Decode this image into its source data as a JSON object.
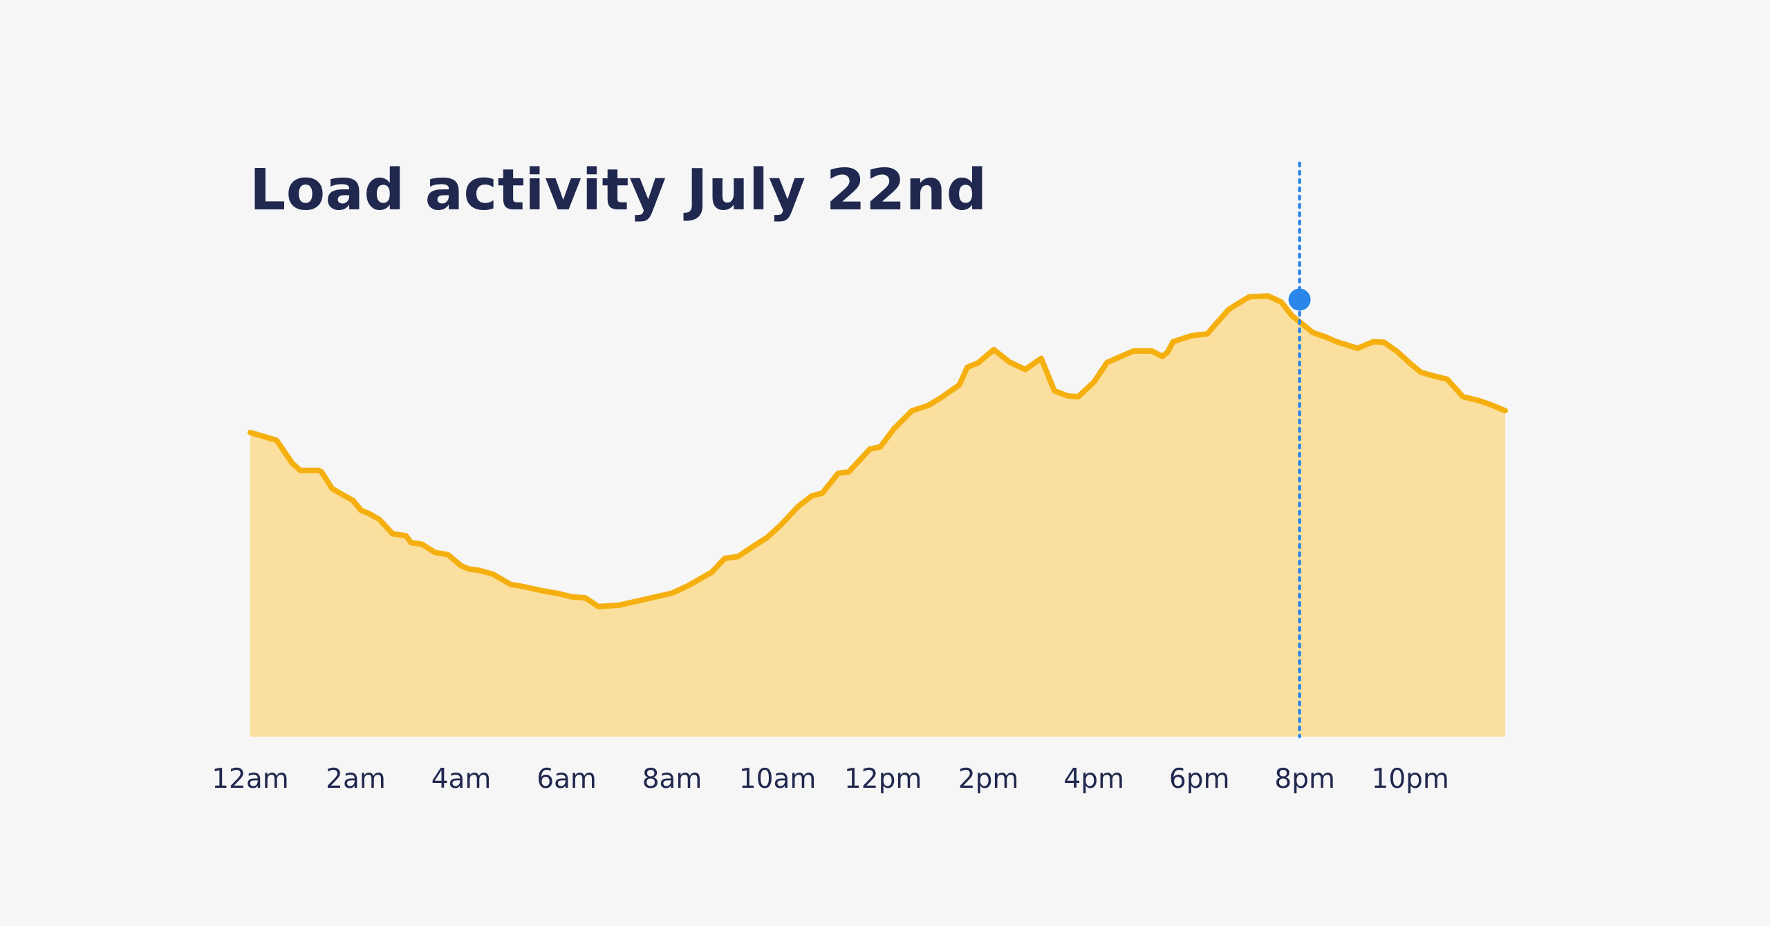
{
  "chart_data": {
    "type": "area",
    "title": "Load activity July 22nd",
    "xlabel": "",
    "ylabel": "",
    "x_unit": "hours",
    "xlim": [
      0,
      23.8
    ],
    "ylim": [
      0,
      100
    ],
    "grid": false,
    "legend": "none",
    "x_ticks": [
      {
        "x": 0,
        "label": "12am"
      },
      {
        "x": 2,
        "label": "2am"
      },
      {
        "x": 4,
        "label": "4am"
      },
      {
        "x": 6,
        "label": "6am"
      },
      {
        "x": 8,
        "label": "8am"
      },
      {
        "x": 10,
        "label": "10am"
      },
      {
        "x": 12,
        "label": "12pm"
      },
      {
        "x": 14,
        "label": "2pm"
      },
      {
        "x": 16,
        "label": "4pm"
      },
      {
        "x": 18,
        "label": "6pm"
      },
      {
        "x": 20,
        "label": "8pm"
      },
      {
        "x": 22,
        "label": "10pm"
      }
    ],
    "series": [
      {
        "x": [
          0.0,
          0.5,
          0.8,
          0.95,
          1.3,
          1.35,
          1.55,
          1.7,
          1.95,
          2.1,
          2.25,
          2.45,
          2.7,
          2.95,
          3.05,
          3.25,
          3.5,
          3.75,
          4.0,
          4.15,
          4.35,
          4.6,
          4.95,
          5.1,
          5.3,
          5.55,
          5.85,
          6.1,
          6.35,
          6.6,
          7.0,
          7.5,
          8.0,
          8.3,
          8.75,
          9.0,
          9.25,
          9.55,
          9.8,
          10.05,
          10.4,
          10.65,
          10.85,
          11.15,
          11.35,
          11.75,
          11.95,
          12.2,
          12.55,
          12.85,
          13.1,
          13.45,
          13.6,
          13.8,
          14.1,
          14.4,
          14.7,
          15.0,
          15.25,
          15.5,
          15.7,
          16.0,
          16.25,
          16.55,
          16.75,
          17.1,
          17.3,
          17.4,
          17.5,
          17.85,
          18.15,
          18.55,
          18.8,
          18.95,
          19.3,
          19.55,
          19.75,
          20.15,
          20.4,
          20.6,
          21.0,
          21.3,
          21.5,
          21.75,
          22.0,
          22.2,
          22.45,
          22.7,
          23.0,
          23.3,
          23.55,
          23.8
        ],
        "y": [
          65.7,
          64.0,
          59.0,
          57.5,
          57.5,
          57.2,
          53.6,
          52.6,
          51.0,
          48.9,
          48.2,
          46.9,
          43.8,
          43.4,
          41.9,
          41.6,
          39.8,
          39.3,
          36.9,
          36.2,
          35.9,
          35.1,
          32.8,
          32.6,
          32.1,
          31.5,
          30.9,
          30.2,
          30.0,
          28.1,
          28.4,
          29.7,
          31.0,
          32.6,
          35.5,
          38.5,
          38.9,
          41.2,
          43.0,
          45.6,
          49.8,
          52.0,
          52.6,
          56.9,
          57.2,
          62.1,
          62.6,
          66.4,
          70.4,
          71.5,
          73.2,
          76.0,
          79.8,
          80.7,
          83.6,
          80.9,
          79.3,
          81.7,
          74.7,
          73.6,
          73.4,
          76.6,
          80.8,
          82.3,
          83.3,
          83.3,
          82.1,
          83.1,
          85.3,
          86.6,
          87.0,
          92.2,
          94.0,
          95.0,
          95.2,
          93.9,
          91.0,
          87.3,
          86.3,
          85.3,
          83.9,
          85.3,
          85.2,
          83.2,
          80.6,
          78.7,
          77.9,
          77.2,
          73.4,
          72.6,
          71.6,
          70.4
        ]
      }
    ],
    "highlight": {
      "x": 19.9,
      "y": 94.4
    },
    "colors": {
      "background": "#f6f6f6",
      "line": "#f5b010",
      "fill": "#fbdf9e",
      "marker": "#2b86ea",
      "title": "#20284f",
      "tick_label": "#20284f"
    }
  }
}
